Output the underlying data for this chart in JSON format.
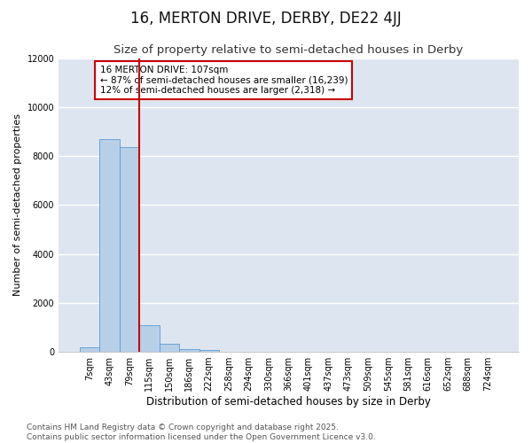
{
  "title": "16, MERTON DRIVE, DERBY, DE22 4JJ",
  "subtitle": "Size of property relative to semi-detached houses in Derby",
  "xlabel": "Distribution of semi-detached houses by size in Derby",
  "ylabel": "Number of semi-detached properties",
  "bar_labels": [
    "7sqm",
    "43sqm",
    "79sqm",
    "115sqm",
    "150sqm",
    "186sqm",
    "222sqm",
    "258sqm",
    "294sqm",
    "330sqm",
    "366sqm",
    "401sqm",
    "437sqm",
    "473sqm",
    "509sqm",
    "545sqm",
    "581sqm",
    "616sqm",
    "652sqm",
    "688sqm",
    "724sqm"
  ],
  "bar_values": [
    200,
    8700,
    8350,
    1100,
    330,
    110,
    80,
    0,
    0,
    0,
    0,
    0,
    0,
    0,
    0,
    0,
    0,
    0,
    0,
    0,
    0
  ],
  "bar_color": "#b8cfe8",
  "bar_edgecolor": "#5a9bd4",
  "bar_width": 1.0,
  "ylim": [
    0,
    12000
  ],
  "yticks": [
    0,
    2000,
    4000,
    6000,
    8000,
    10000,
    12000
  ],
  "property_line_x": 2.5,
  "property_line_color": "#cc0000",
  "annotation_text": "16 MERTON DRIVE: 107sqm\n← 87% of semi-detached houses are smaller (16,239)\n12% of semi-detached houses are larger (2,318) →",
  "annotation_box_color": "#ffffff",
  "annotation_box_edgecolor": "#cc0000",
  "background_color": "#dde6f0",
  "grid_color": "#ffffff",
  "title_fontsize": 12,
  "subtitle_fontsize": 9.5,
  "xlabel_fontsize": 8.5,
  "ylabel_fontsize": 8,
  "tick_fontsize": 7,
  "annotation_fontsize": 7.5,
  "footer_line1": "Contains HM Land Registry data © Crown copyright and database right 2025.",
  "footer_line2": "Contains public sector information licensed under the Open Government Licence v3.0.",
  "footer_fontsize": 6.5
}
